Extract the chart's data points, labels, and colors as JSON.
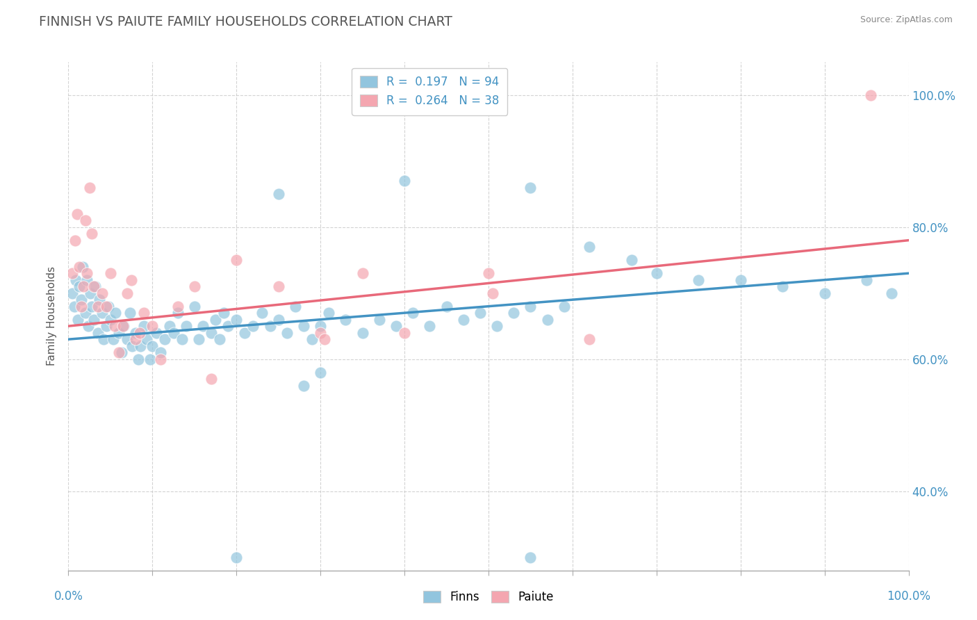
{
  "title": "FINNISH VS PAIUTE FAMILY HOUSEHOLDS CORRELATION CHART",
  "source": "Source: ZipAtlas.com",
  "ylabel": "Family Households",
  "finns_color": "#92c5de",
  "paiute_color": "#f4a6b0",
  "finns_line_color": "#4393c3",
  "paiute_line_color": "#e8697a",
  "background_color": "#ffffff",
  "grid_color": "#c8c8c8",
  "title_color": "#555555",
  "axis_label_color": "#4393c3",
  "finns_R": 0.197,
  "finns_N": 94,
  "paiute_R": 0.264,
  "paiute_N": 38,
  "xlim": [
    0,
    100
  ],
  "ylim": [
    28,
    105
  ],
  "y_ticks": [
    40,
    60,
    80,
    100
  ],
  "finns_scatter": [
    [
      0.5,
      70
    ],
    [
      0.7,
      68
    ],
    [
      0.9,
      72
    ],
    [
      1.1,
      66
    ],
    [
      1.3,
      71
    ],
    [
      1.5,
      69
    ],
    [
      1.7,
      74
    ],
    [
      2.0,
      67
    ],
    [
      2.2,
      72
    ],
    [
      2.4,
      65
    ],
    [
      2.6,
      70
    ],
    [
      2.8,
      68
    ],
    [
      3.0,
      66
    ],
    [
      3.2,
      71
    ],
    [
      3.5,
      64
    ],
    [
      3.7,
      69
    ],
    [
      4.0,
      67
    ],
    [
      4.2,
      63
    ],
    [
      4.5,
      65
    ],
    [
      4.8,
      68
    ],
    [
      5.0,
      66
    ],
    [
      5.3,
      63
    ],
    [
      5.6,
      67
    ],
    [
      6.0,
      64
    ],
    [
      6.3,
      61
    ],
    [
      6.6,
      65
    ],
    [
      7.0,
      63
    ],
    [
      7.3,
      67
    ],
    [
      7.6,
      62
    ],
    [
      8.0,
      64
    ],
    [
      8.3,
      60
    ],
    [
      8.6,
      62
    ],
    [
      9.0,
      65
    ],
    [
      9.3,
      63
    ],
    [
      9.7,
      60
    ],
    [
      10.0,
      62
    ],
    [
      10.5,
      64
    ],
    [
      11.0,
      61
    ],
    [
      11.5,
      63
    ],
    [
      12.0,
      65
    ],
    [
      12.5,
      64
    ],
    [
      13.0,
      67
    ],
    [
      13.5,
      63
    ],
    [
      14.0,
      65
    ],
    [
      15.0,
      68
    ],
    [
      15.5,
      63
    ],
    [
      16.0,
      65
    ],
    [
      17.0,
      64
    ],
    [
      17.5,
      66
    ],
    [
      18.0,
      63
    ],
    [
      18.5,
      67
    ],
    [
      19.0,
      65
    ],
    [
      20.0,
      66
    ],
    [
      21.0,
      64
    ],
    [
      22.0,
      65
    ],
    [
      23.0,
      67
    ],
    [
      24.0,
      65
    ],
    [
      25.0,
      66
    ],
    [
      26.0,
      64
    ],
    [
      27.0,
      68
    ],
    [
      28.0,
      65
    ],
    [
      29.0,
      63
    ],
    [
      30.0,
      65
    ],
    [
      31.0,
      67
    ],
    [
      33.0,
      66
    ],
    [
      35.0,
      64
    ],
    [
      37.0,
      66
    ],
    [
      39.0,
      65
    ],
    [
      41.0,
      67
    ],
    [
      43.0,
      65
    ],
    [
      45.0,
      68
    ],
    [
      47.0,
      66
    ],
    [
      49.0,
      67
    ],
    [
      51.0,
      65
    ],
    [
      53.0,
      67
    ],
    [
      55.0,
      68
    ],
    [
      57.0,
      66
    ],
    [
      59.0,
      68
    ],
    [
      62.0,
      77
    ],
    [
      67.0,
      75
    ],
    [
      70.0,
      73
    ],
    [
      75.0,
      72
    ],
    [
      80.0,
      72
    ],
    [
      85.0,
      71
    ],
    [
      90.0,
      70
    ],
    [
      95.0,
      72
    ],
    [
      98.0,
      70
    ],
    [
      55.0,
      86
    ],
    [
      40.0,
      87
    ],
    [
      25.0,
      85
    ],
    [
      20.0,
      30
    ],
    [
      55.0,
      30
    ],
    [
      30.0,
      58
    ],
    [
      28.0,
      56
    ]
  ],
  "paiute_scatter": [
    [
      0.5,
      73
    ],
    [
      0.8,
      78
    ],
    [
      1.0,
      82
    ],
    [
      1.3,
      74
    ],
    [
      1.5,
      68
    ],
    [
      1.8,
      71
    ],
    [
      2.0,
      81
    ],
    [
      2.2,
      73
    ],
    [
      2.5,
      86
    ],
    [
      2.8,
      79
    ],
    [
      3.0,
      71
    ],
    [
      3.5,
      68
    ],
    [
      4.0,
      70
    ],
    [
      4.5,
      68
    ],
    [
      5.0,
      73
    ],
    [
      5.5,
      65
    ],
    [
      6.0,
      61
    ],
    [
      6.5,
      65
    ],
    [
      7.0,
      70
    ],
    [
      7.5,
      72
    ],
    [
      8.0,
      63
    ],
    [
      8.5,
      64
    ],
    [
      9.0,
      67
    ],
    [
      10.0,
      65
    ],
    [
      11.0,
      60
    ],
    [
      13.0,
      68
    ],
    [
      15.0,
      71
    ],
    [
      17.0,
      57
    ],
    [
      20.0,
      75
    ],
    [
      25.0,
      71
    ],
    [
      30.0,
      64
    ],
    [
      30.5,
      63
    ],
    [
      35.0,
      73
    ],
    [
      40.0,
      64
    ],
    [
      50.0,
      73
    ],
    [
      50.5,
      70
    ],
    [
      62.0,
      63
    ],
    [
      95.5,
      100
    ]
  ]
}
